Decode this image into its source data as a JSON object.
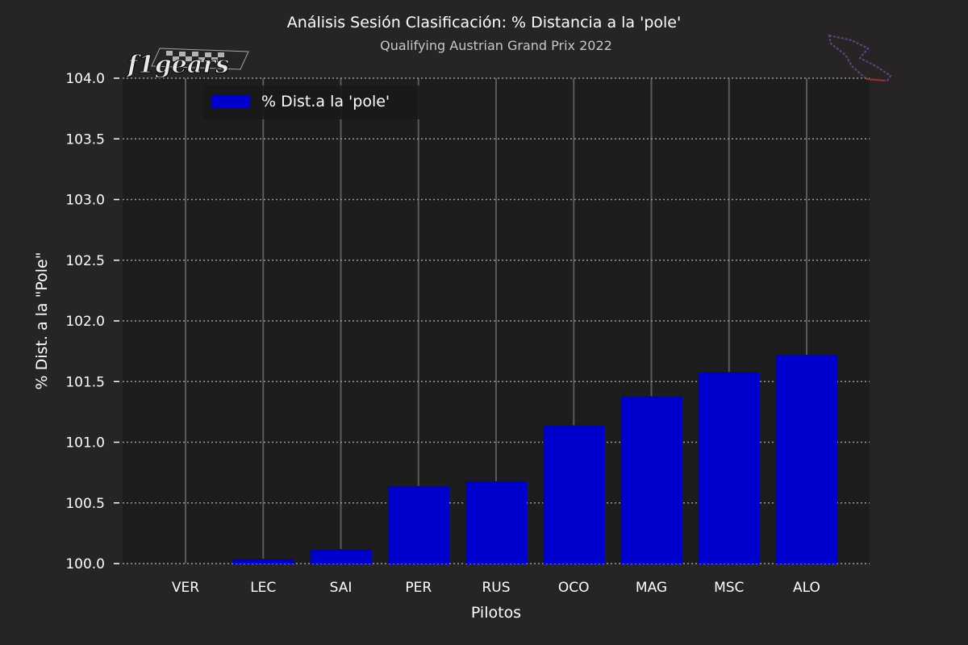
{
  "chart_data": {
    "type": "bar",
    "title": "Análisis Sesión Clasificación: % Distancia a la 'pole'",
    "subtitle": "Qualifying Austrian Grand Prix 2022",
    "xlabel": "Pilotos",
    "ylabel": "% Dist. a la \"Pole\"",
    "categories": [
      "VER",
      "LEC",
      "SAI",
      "PER",
      "RUS",
      "OCO",
      "MAG",
      "MSC",
      "ALO"
    ],
    "series": [
      {
        "name": "% Dist.a la 'pole'",
        "values": [
          100.0,
          100.04,
          100.12,
          100.64,
          100.68,
          101.14,
          101.38,
          101.58,
          101.72
        ]
      }
    ],
    "ylim": [
      100.0,
      104.0
    ],
    "yticks": [
      "100.0",
      "100.5",
      "101.0",
      "101.5",
      "102.0",
      "102.5",
      "103.0",
      "103.5",
      "104.0"
    ],
    "grid": {
      "horizontal": "dotted",
      "vertical": "solid"
    },
    "legend_position": "top-left",
    "colors": {
      "bar": "#0000cd",
      "background": "#262424",
      "plot_area": "#1e1d1d",
      "grid_h": "#9a9a9a",
      "grid_v": "#5a5a5a",
      "text": "#ffffff"
    }
  },
  "logo": {
    "text": "f1gears",
    "icon": "checkered-flag-icon"
  },
  "circuit_icon": "circuit-map-icon"
}
